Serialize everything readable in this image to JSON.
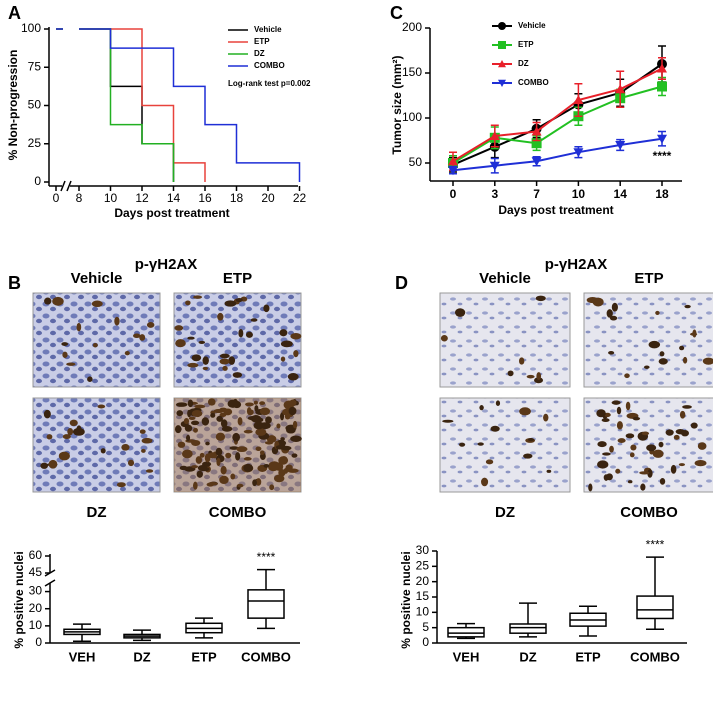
{
  "panel_labels": [
    "A",
    "B",
    "C",
    "D"
  ],
  "micrographs": [
    {
      "title": "p-γH2AX",
      "labels": [
        "Vehicle",
        "ETP",
        "DZ",
        "COMBO"
      ]
    },
    {
      "title": "p-γH2AX",
      "labels": [
        "Vehicle",
        "ETP",
        "DZ",
        "COMBO"
      ]
    }
  ],
  "chart_data": [
    {
      "type": "survival",
      "ylabel": "% Non-progression",
      "xlabel": "Days post treatment",
      "annotation": "Log-rank test p=0.002",
      "xlim": [
        0,
        22
      ],
      "xticks": [
        0,
        8,
        10,
        12,
        14,
        16,
        18,
        20,
        22
      ],
      "ylim": [
        0,
        100
      ],
      "yticks": [
        0,
        25,
        50,
        75,
        100
      ],
      "series": [
        {
          "name": "Vehicle",
          "color": "#000000",
          "x": [
            8,
            10,
            12,
            14
          ],
          "values": [
            100,
            62.5,
            25,
            0
          ]
        },
        {
          "name": "ETP",
          "color": "#e8423c",
          "x": [
            8,
            12,
            14,
            16
          ],
          "values": [
            100,
            50,
            12.5,
            0
          ]
        },
        {
          "name": "DZ",
          "color": "#22b022",
          "x": [
            8,
            10,
            12,
            14
          ],
          "values": [
            100,
            37.5,
            25,
            0
          ]
        },
        {
          "name": "COMBO",
          "color": "#1f2fd6",
          "x": [
            8,
            10,
            14,
            16,
            18,
            22
          ],
          "values": [
            100,
            87.5,
            62.5,
            37.5,
            12.5,
            0
          ]
        }
      ]
    },
    {
      "type": "line",
      "ylabel": "Tumor size (mm²)",
      "xlabel": "Days post treatment",
      "annotation": "****",
      "categories": [
        "0",
        "3",
        "7",
        "10",
        "14",
        "18"
      ],
      "ylim": [
        30,
        200
      ],
      "yticks": [
        50,
        100,
        150,
        200
      ],
      "series": [
        {
          "name": "Vehicle",
          "color": "#000000",
          "marker": "circle",
          "values": [
            48,
            68,
            88,
            115,
            128,
            160
          ],
          "errors": [
            8,
            12,
            10,
            12,
            15,
            20
          ]
        },
        {
          "name": "ETP",
          "color": "#22c022",
          "marker": "square",
          "values": [
            50,
            78,
            72,
            102,
            122,
            135
          ],
          "errors": [
            8,
            12,
            8,
            10,
            10,
            10
          ]
        },
        {
          "name": "DZ",
          "color": "#e8202a",
          "marker": "triangle",
          "values": [
            52,
            80,
            85,
            120,
            132,
            155
          ],
          "errors": [
            10,
            12,
            10,
            18,
            20,
            12
          ]
        },
        {
          "name": "COMBO",
          "color": "#1f2fd6",
          "marker": "triangle-down",
          "values": [
            42,
            47,
            52,
            62,
            70,
            77
          ],
          "errors": [
            4,
            8,
            5,
            6,
            6,
            8
          ]
        }
      ]
    },
    {
      "type": "box",
      "ylabel": "% positive nuclei",
      "annotation": "****",
      "categories": [
        "VEH",
        "DZ",
        "ETP",
        "COMBO"
      ],
      "ylim": [
        0,
        60
      ],
      "axis_break": [
        35,
        45
      ],
      "yticks": [
        0,
        10,
        20,
        30,
        45,
        60
      ],
      "values": [
        [
          1,
          5,
          6.5,
          8,
          11
        ],
        [
          1.5,
          3,
          4,
          5,
          7.5
        ],
        [
          3,
          6,
          8.5,
          11.5,
          14.5
        ],
        [
          8.5,
          14.5,
          24.5,
          31,
          48
        ]
      ]
    },
    {
      "type": "box",
      "ylabel": "% positive nuclei",
      "annotation": "****",
      "categories": [
        "VEH",
        "DZ",
        "ETP",
        "COMBO"
      ],
      "ylim": [
        0,
        30
      ],
      "yticks": [
        0,
        5,
        10,
        15,
        20,
        25,
        30
      ],
      "values": [
        [
          1.5,
          2,
          3.2,
          5,
          6.3
        ],
        [
          2,
          3.2,
          5,
          6.2,
          13
        ],
        [
          2.3,
          5.5,
          7.5,
          9.7,
          12
        ],
        [
          4.5,
          8,
          10.8,
          15.3,
          28
        ]
      ]
    }
  ]
}
